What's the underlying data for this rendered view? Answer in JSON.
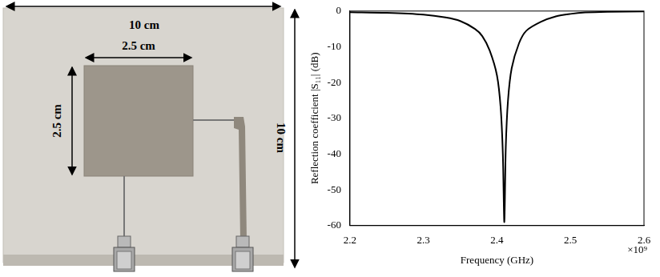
{
  "photo": {
    "board_width_label": "10 cm",
    "board_height_label": "10 cm",
    "patch_width_label": "2.5 cm",
    "patch_height_label": "2.5 cm"
  },
  "chart_data": {
    "type": "line",
    "x_label": "Frequency (GHz)",
    "x_multiplier": "×10⁹",
    "y_label": "Reflection coefficient |S₁₁| (dB)",
    "x": [
      2.2,
      2.25,
      2.3,
      2.33,
      2.35,
      2.37,
      2.38,
      2.39,
      2.4,
      2.405,
      2.408,
      2.41,
      2.412,
      2.415,
      2.42,
      2.43,
      2.44,
      2.46,
      2.48,
      2.5,
      2.52,
      2.55,
      2.6
    ],
    "values": [
      -0.3,
      -0.5,
      -1.0,
      -1.8,
      -2.8,
      -5.0,
      -7.0,
      -11.0,
      -18.0,
      -27.0,
      -40.0,
      -59.0,
      -38.0,
      -25.0,
      -16.0,
      -9.0,
      -5.5,
      -3.0,
      -1.5,
      -0.8,
      -0.4,
      -0.2,
      -0.1
    ],
    "color": "#000000",
    "xlim": [
      2.2,
      2.6
    ],
    "xticks": [
      2.2,
      2.3,
      2.4,
      2.5,
      2.6
    ],
    "ylim": [
      -60,
      0
    ],
    "yticks": [
      -60,
      -50,
      -40,
      -30,
      -20,
      -10,
      0
    ],
    "grid": false
  }
}
